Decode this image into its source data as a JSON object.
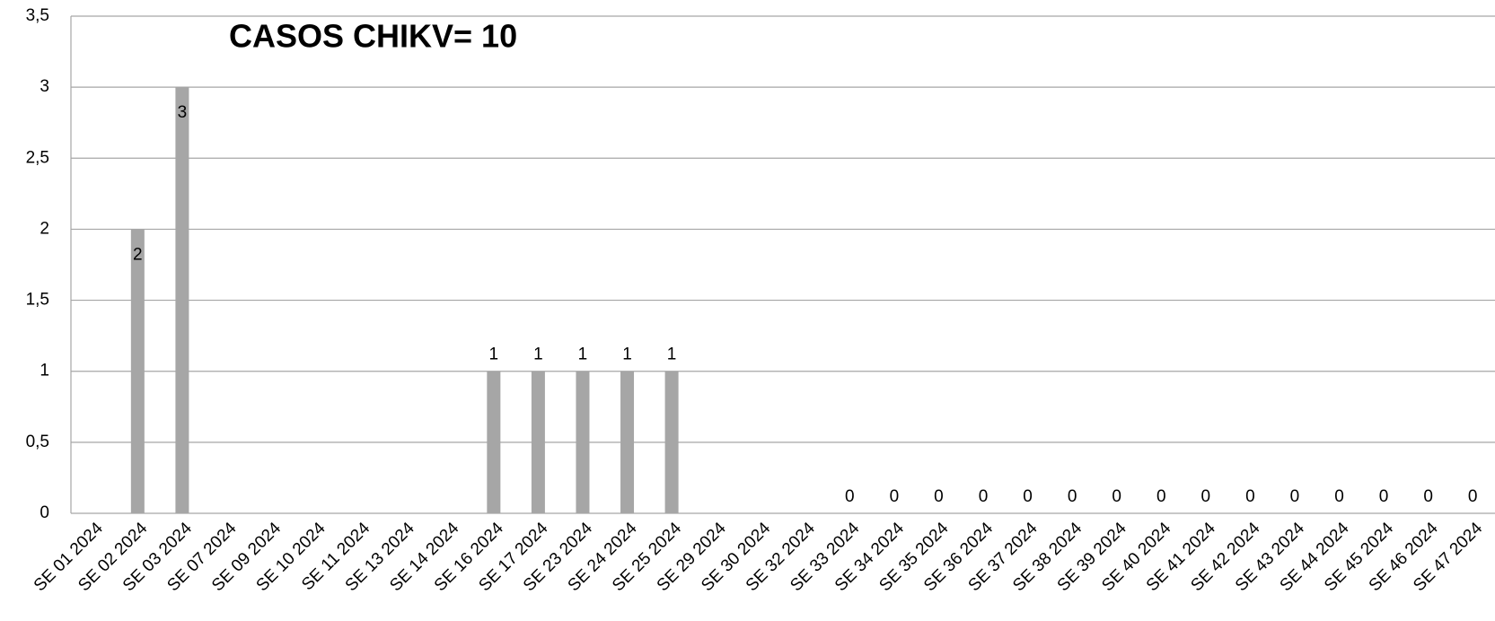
{
  "chart_data": {
    "type": "bar",
    "title": "CASOS CHIKV= 10",
    "categories": [
      "SE 01 2024",
      "SE 02 2024",
      "SE 03 2024",
      "SE 07 2024",
      "SE 09 2024",
      "SE 10 2024",
      "SE 11 2024",
      "SE 13 2024",
      "SE 14 2024",
      "SE 16 2024",
      "SE 17 2024",
      "SE 23 2024",
      "SE 24 2024",
      "SE 25 2024",
      "SE 29 2024",
      "SE 30 2024",
      "SE 32 2024",
      "SE 33 2024",
      "SE 34 2024",
      "SE 35 2024",
      "SE 36 2024",
      "SE 37 2024",
      "SE 38 2024",
      "SE 39 2024",
      "SE 40 2024",
      "SE 41 2024",
      "SE 42 2024",
      "SE 43 2024",
      "SE 44 2024",
      "SE 45 2024",
      "SE 46 2024",
      "SE 47 2024"
    ],
    "values": [
      null,
      2,
      3,
      null,
      null,
      null,
      null,
      null,
      null,
      1,
      1,
      1,
      1,
      1,
      null,
      null,
      null,
      0,
      0,
      0,
      0,
      0,
      0,
      0,
      0,
      0,
      0,
      0,
      0,
      0,
      0,
      0
    ],
    "color": "#a6a6a6",
    "ylim": [
      0,
      3.5
    ],
    "yticks": [
      0,
      {
        "value": 0.5,
        "label": "0,5"
      },
      1,
      {
        "value": 1.5,
        "label": "1,5"
      },
      2,
      {
        "value": 2.5,
        "label": "2,5"
      },
      3,
      {
        "value": 3.5,
        "label": "3,5"
      }
    ],
    "grid": true
  }
}
